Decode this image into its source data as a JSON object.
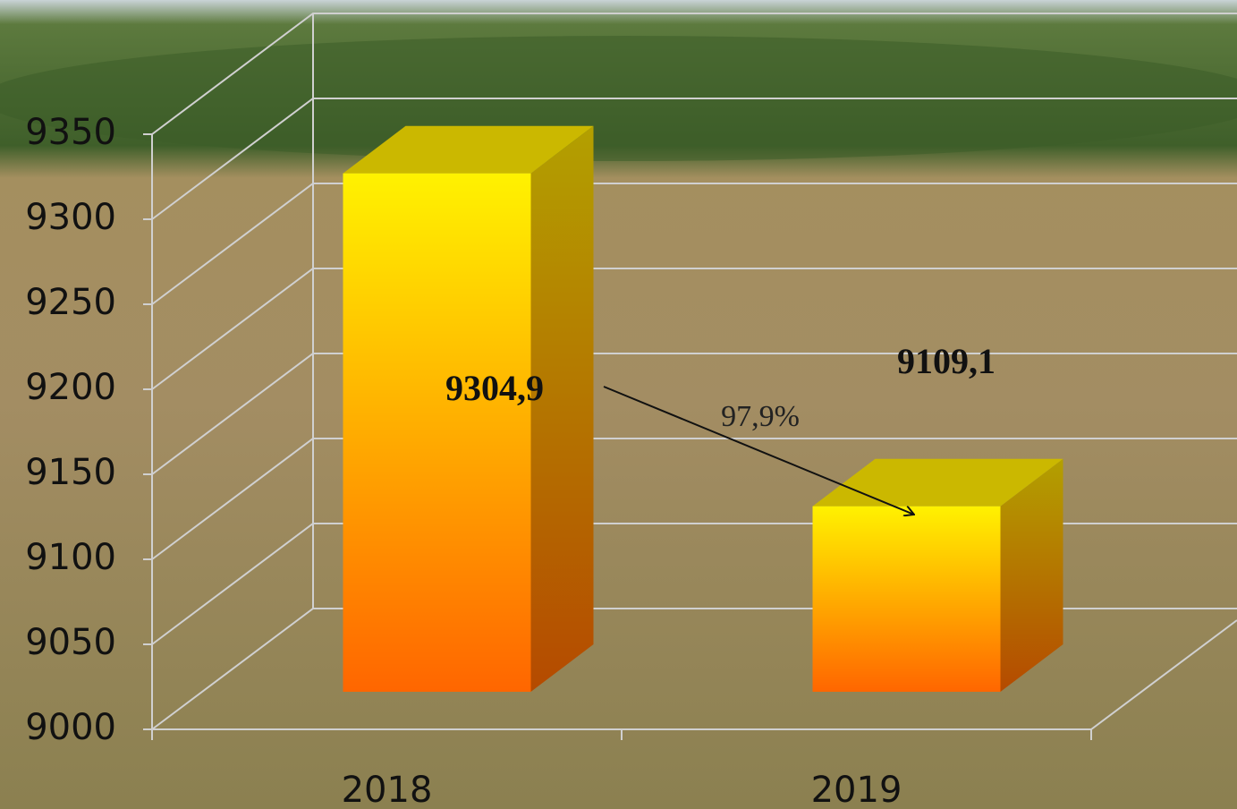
{
  "chart_data": {
    "type": "bar3d",
    "categories": [
      "2018",
      "2019"
    ],
    "values": [
      9304.9,
      9109.1
    ],
    "value_labels": [
      "9304,9",
      "9109,1"
    ],
    "annotation": "97,9%",
    "ylim": [
      9000,
      9350
    ],
    "yticks": [
      9000,
      9050,
      9100,
      9150,
      9200,
      9250,
      9300,
      9350
    ],
    "grid": true
  }
}
